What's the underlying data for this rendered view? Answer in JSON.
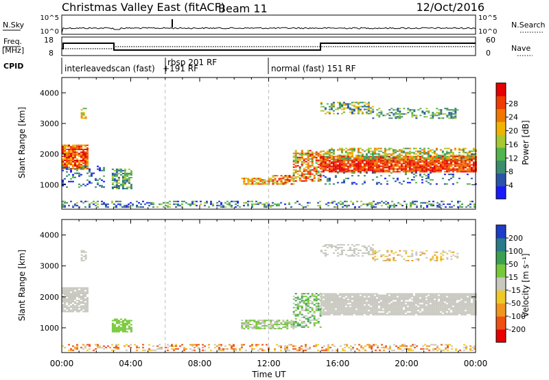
{
  "header": {
    "title": "Christmas Valley East (fitACF)",
    "beam": "Beam 11",
    "date": "12/Oct/2016"
  },
  "strips": {
    "nsky_label": "N.Sky",
    "nsky_ticks": [
      "10^5",
      "10^0"
    ],
    "nsearch_label": "N.Search",
    "nsearch_ticks": [
      "10^5",
      "10^0"
    ],
    "freq_label": "Freq.",
    "freq_unit": "[MHz]",
    "freq_ticks": [
      "18",
      "8"
    ],
    "nave_label": "Nave",
    "nave_ticks": [
      "60",
      "0"
    ],
    "cpid_label": "CPID",
    "cpid_segments": [
      {
        "label": "interleavedscan (fast)",
        "start_hr": 0
      },
      {
        "label": "rbsp 201 RF",
        "start_hr": 6
      },
      {
        "label": "+191 RF",
        "start_hr": 6
      },
      {
        "label": "normal (fast) 151 RF",
        "start_hr": 12
      }
    ]
  },
  "time_axis": {
    "label": "Time UT",
    "ticks": [
      "00:00",
      "04:00",
      "08:00",
      "12:00",
      "16:00",
      "20:00",
      "00:00"
    ]
  },
  "chart_data": [
    {
      "type": "heatmap",
      "name": "power",
      "ylabel": "Slant Range [km]",
      "yticks": [
        "1000",
        "2000",
        "3000",
        "4000"
      ],
      "ylim": [
        200,
        4500
      ],
      "xlim_hours": [
        0,
        24
      ],
      "colorbar_label": "Power [dB]",
      "colorbar_ticks": [
        "4",
        "8",
        "12",
        "16",
        "20",
        "24",
        "28"
      ],
      "colors": [
        "#1a1aff",
        "#2a54a8",
        "#3c8c6e",
        "#52b44c",
        "#a8c832",
        "#f0b400",
        "#f07800",
        "#f03c00",
        "#e60000"
      ]
    },
    {
      "type": "heatmap",
      "name": "velocity",
      "ylabel": "Slant Range [km]",
      "yticks": [
        "1000",
        "2000",
        "3000",
        "4000"
      ],
      "ylim": [
        200,
        4500
      ],
      "xlim_hours": [
        0,
        24
      ],
      "colorbar_label": "Velocity [m s⁻¹]",
      "colorbar_ticks": [
        "200",
        "100",
        "50",
        "15",
        "-15",
        "-50",
        "-100",
        "-200"
      ],
      "colors": [
        "#1e3cc8",
        "#2a7a8a",
        "#3ca050",
        "#78c83c",
        "#c8c8c0",
        "#f0c828",
        "#f0961e",
        "#f05014",
        "#e60000"
      ]
    }
  ]
}
